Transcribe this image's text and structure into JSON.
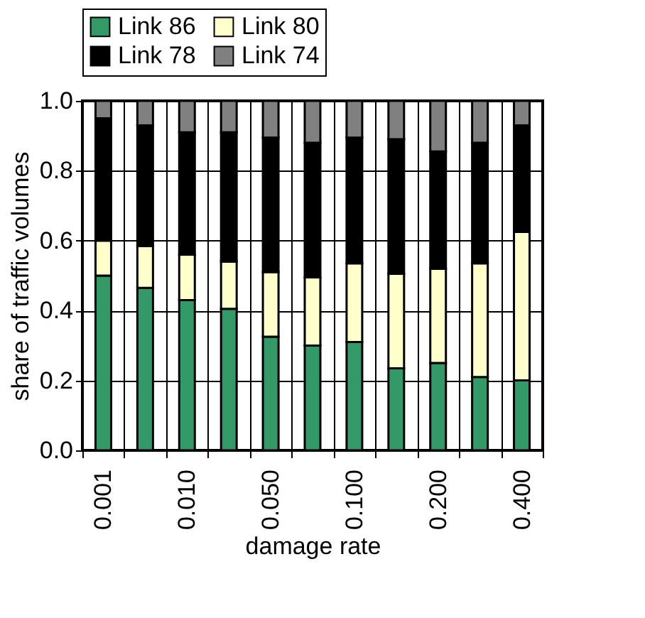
{
  "chart_data": {
    "type": "bar",
    "stacked": true,
    "xlabel": "damage rate",
    "ylabel": "share of traffic volumes",
    "categories": [
      "0.001",
      null,
      "0.010",
      null,
      "0.050",
      null,
      "0.100",
      null,
      "0.200",
      null,
      "0.400"
    ],
    "series": [
      {
        "name": "Link 86",
        "color": "#339966",
        "values": [
          0.5,
          0.465,
          0.43,
          0.405,
          0.325,
          0.3,
          0.31,
          0.235,
          0.25,
          0.21,
          0.2
        ]
      },
      {
        "name": "Link 80",
        "color": "#ffffcc",
        "values": [
          0.1,
          0.12,
          0.13,
          0.135,
          0.185,
          0.195,
          0.225,
          0.27,
          0.27,
          0.325,
          0.425
        ]
      },
      {
        "name": "Link 78",
        "color": "#000000",
        "values": [
          0.35,
          0.345,
          0.35,
          0.37,
          0.385,
          0.385,
          0.36,
          0.385,
          0.335,
          0.345,
          0.305
        ]
      },
      {
        "name": "Link 74",
        "color": "#808080",
        "values": [
          0.05,
          0.07,
          0.09,
          0.09,
          0.105,
          0.12,
          0.105,
          0.11,
          0.145,
          0.12,
          0.07
        ]
      }
    ],
    "ylim": [
      0,
      1
    ],
    "yticks": [
      {
        "value": 0,
        "label": "0.0"
      },
      {
        "value": 0.2,
        "label": "0.2"
      },
      {
        "value": 0.4,
        "label": "0.4"
      },
      {
        "value": 0.6,
        "label": "0.6"
      },
      {
        "value": 0.8,
        "label": "0.8"
      },
      {
        "value": 1,
        "label": "1.0"
      }
    ],
    "grid": true,
    "legend": "top"
  }
}
